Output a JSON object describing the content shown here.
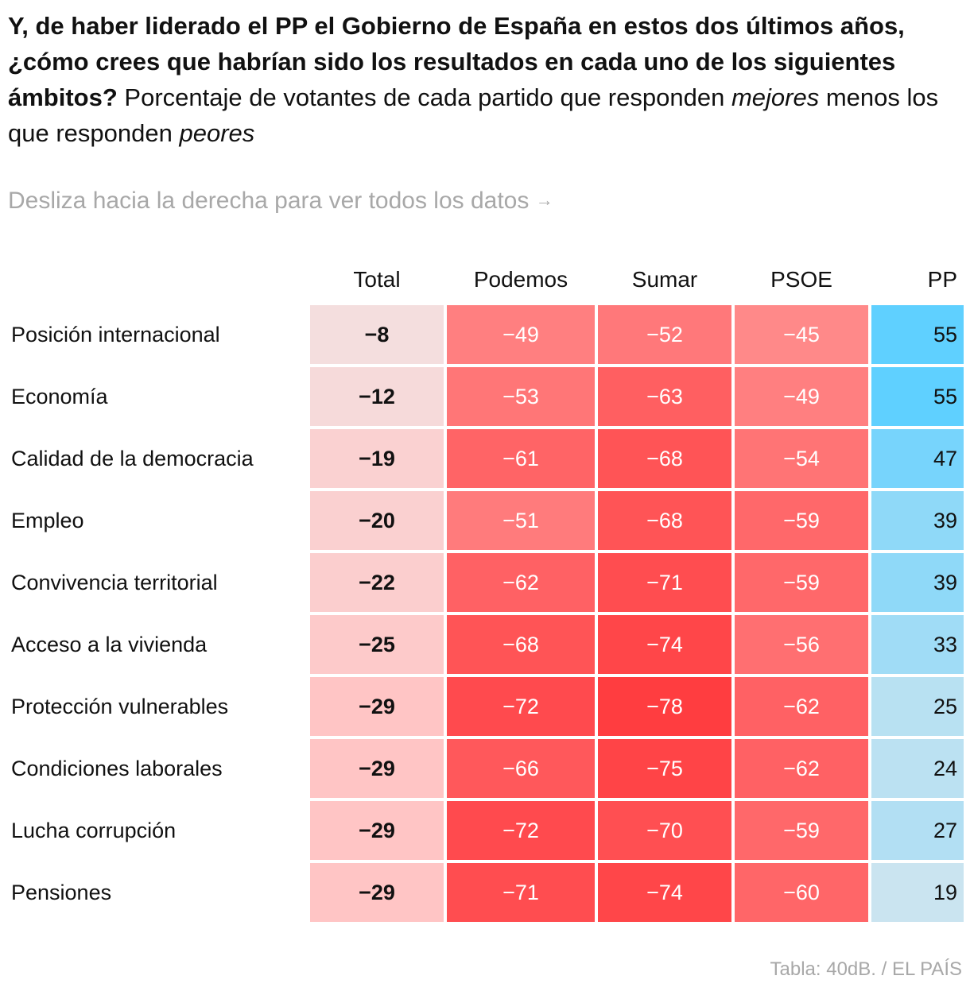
{
  "header": {
    "title_bold": "Y, de haber liderado el PP el Gobierno de España en estos dos últimos años, ¿cómo crees que habrían sido los resultados en cada uno de los siguientes ámbitos?",
    "subtitle_part1": "Porcentaje de votantes de cada partido que responden",
    "subtitle_em1": "mejores",
    "subtitle_part2": "menos los que responden",
    "subtitle_em2": "peores"
  },
  "hint": {
    "text": "Desliza hacia la derecha para ver todos los datos",
    "arrow": "→"
  },
  "source": "Tabla: 40dB. / EL PAÍS",
  "colors": {
    "negative_max": "#ff3b3b",
    "positive_max": "#5fd0ff",
    "total_light": "#f0e8e8"
  },
  "chart_data": {
    "type": "table",
    "title": "Y, de haber liderado el PP el Gobierno de España en estos dos últimos años, ¿cómo crees que habrían sido los resultados en cada uno de los siguientes ámbitos?",
    "columns": [
      "Total",
      "Podemos",
      "Sumar",
      "PSOE",
      "PP"
    ],
    "rows": [
      {
        "label": "Posición internacional",
        "values": [
          "−8",
          "−49",
          "−52",
          "−45",
          "55"
        ],
        "nums": [
          -8,
          -49,
          -52,
          -45,
          55
        ]
      },
      {
        "label": "Economía",
        "values": [
          "−12",
          "−53",
          "−63",
          "−49",
          "55"
        ],
        "nums": [
          -12,
          -53,
          -63,
          -49,
          55
        ]
      },
      {
        "label": "Calidad de la democracia",
        "values": [
          "−19",
          "−61",
          "−68",
          "−54",
          "47"
        ],
        "nums": [
          -19,
          -61,
          -68,
          -54,
          47
        ]
      },
      {
        "label": "Empleo",
        "values": [
          "−20",
          "−51",
          "−68",
          "−59",
          "39"
        ],
        "nums": [
          -20,
          -51,
          -68,
          -59,
          39
        ]
      },
      {
        "label": "Convivencia territorial",
        "values": [
          "−22",
          "−62",
          "−71",
          "−59",
          "39"
        ],
        "nums": [
          -22,
          -62,
          -71,
          -59,
          39
        ]
      },
      {
        "label": "Acceso a la vivienda",
        "values": [
          "−25",
          "−68",
          "−74",
          "−56",
          "33"
        ],
        "nums": [
          -25,
          -68,
          -74,
          -56,
          33
        ]
      },
      {
        "label": "Protección vulnerables",
        "values": [
          "−29",
          "−72",
          "−78",
          "−62",
          "25"
        ],
        "nums": [
          -29,
          -72,
          -78,
          -62,
          25
        ]
      },
      {
        "label": "Condiciones laborales",
        "values": [
          "−29",
          "−66",
          "−75",
          "−62",
          "24"
        ],
        "nums": [
          -29,
          -66,
          -75,
          -62,
          24
        ]
      },
      {
        "label": "Lucha corrupción",
        "values": [
          "−29",
          "−72",
          "−70",
          "−59",
          "27"
        ],
        "nums": [
          -29,
          -72,
          -70,
          -59,
          27
        ]
      },
      {
        "label": "Pensiones",
        "values": [
          "−29",
          "−71",
          "−74",
          "−60",
          "19"
        ],
        "nums": [
          -29,
          -71,
          -74,
          -60,
          19
        ]
      }
    ]
  }
}
